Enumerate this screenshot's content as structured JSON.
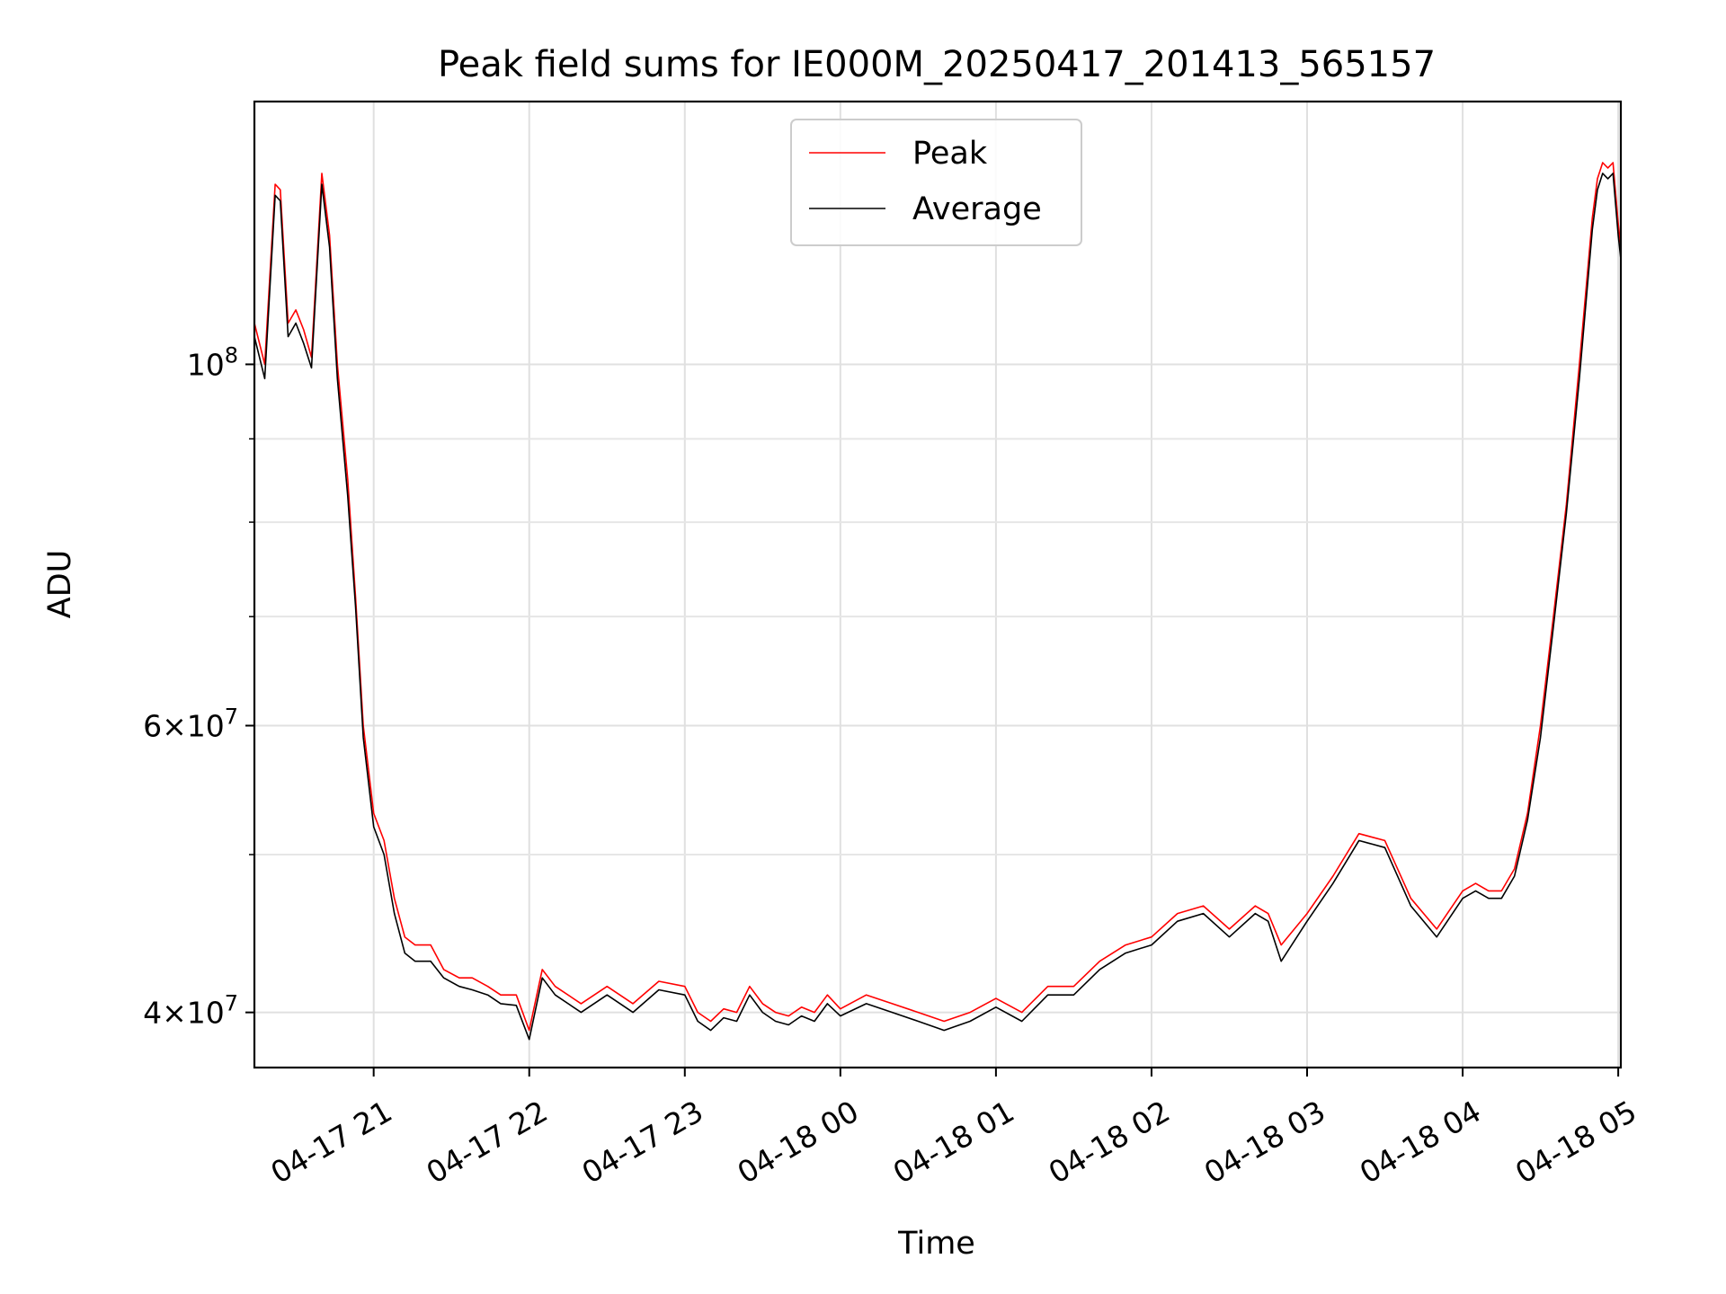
{
  "chart_data": {
    "type": "line",
    "title": "Peak field sums for IE000M_20250417_201413_565157",
    "xlabel": "Time",
    "ylabel": "ADU",
    "yscale": "log",
    "ylim": [
      37000000,
      145000000
    ],
    "xlim": [
      "04-17 20:14",
      "04-18 05:01"
    ],
    "grid": true,
    "legend_position": "upper center",
    "x_tick_labels": [
      "04-17 21",
      "04-17 22",
      "04-17 23",
      "04-18 00",
      "04-18 01",
      "04-18 02",
      "04-18 03",
      "04-18 04",
      "04-18 05"
    ],
    "y_tick_labels": [
      {
        "value": 100000000,
        "label": "10^8"
      },
      {
        "value": 60000000,
        "label": "6×10^7"
      },
      {
        "value": 40000000,
        "label": "4×10^7"
      }
    ],
    "y_minor_ticks": [
      50000000,
      70000000,
      80000000,
      90000000
    ],
    "x": [
      "04-17 20:14",
      "04-17 20:18",
      "04-17 20:22",
      "04-17 20:24",
      "04-17 20:27",
      "04-17 20:30",
      "04-17 20:33",
      "04-17 20:36",
      "04-17 20:40",
      "04-17 20:43",
      "04-17 20:46",
      "04-17 20:50",
      "04-17 20:53",
      "04-17 20:56",
      "04-17 21:00",
      "04-17 21:04",
      "04-17 21:08",
      "04-17 21:12",
      "04-17 21:16",
      "04-17 21:22",
      "04-17 21:27",
      "04-17 21:33",
      "04-17 21:38",
      "04-17 21:44",
      "04-17 21:49",
      "04-17 21:55",
      "04-17 22:00",
      "04-17 22:05",
      "04-17 22:10",
      "04-17 22:20",
      "04-17 22:30",
      "04-17 22:40",
      "04-17 22:50",
      "04-17 23:00",
      "04-17 23:05",
      "04-17 23:10",
      "04-17 23:15",
      "04-17 23:20",
      "04-17 23:25",
      "04-17 23:30",
      "04-17 23:35",
      "04-17 23:40",
      "04-17 23:45",
      "04-17 23:50",
      "04-17 23:55",
      "04-18 00:00",
      "04-18 00:10",
      "04-18 00:20",
      "04-18 00:30",
      "04-18 00:40",
      "04-18 00:50",
      "04-18 01:00",
      "04-18 01:10",
      "04-18 01:20",
      "04-18 01:30",
      "04-18 01:40",
      "04-18 01:50",
      "04-18 02:00",
      "04-18 02:10",
      "04-18 02:20",
      "04-18 02:30",
      "04-18 02:40",
      "04-18 02:45",
      "04-18 02:50",
      "04-18 03:00",
      "04-18 03:10",
      "04-18 03:20",
      "04-18 03:30",
      "04-18 03:40",
      "04-18 03:50",
      "04-18 04:00",
      "04-18 04:05",
      "04-18 04:10",
      "04-18 04:15",
      "04-18 04:20",
      "04-18 04:25",
      "04-18 04:30",
      "04-18 04:35",
      "04-18 04:40",
      "04-18 04:45",
      "04-18 04:50",
      "04-18 04:52",
      "04-18 04:54",
      "04-18 04:56",
      "04-18 04:58",
      "04-18 05:00",
      "04-18 05:01"
    ],
    "series": [
      {
        "name": "Peak",
        "color": "#ff0000",
        "values": [
          106000000,
          100000000,
          129000000,
          128000000,
          106000000,
          108000000,
          105000000,
          101000000,
          131000000,
          120000000,
          100000000,
          85000000,
          72000000,
          60000000,
          53000000,
          51000000,
          47000000,
          44500000,
          44000000,
          44000000,
          42500000,
          42000000,
          42000000,
          41500000,
          41000000,
          41000000,
          39000000,
          42500000,
          41500000,
          40500000,
          41500000,
          40500000,
          41800000,
          41500000,
          40000000,
          39500000,
          40200000,
          40000000,
          41500000,
          40500000,
          40000000,
          39800000,
          40300000,
          40000000,
          41000000,
          40200000,
          41000000,
          40500000,
          40000000,
          39500000,
          40000000,
          40800000,
          40000000,
          41500000,
          41500000,
          43000000,
          44000000,
          44500000,
          46000000,
          46500000,
          45000000,
          46500000,
          46000000,
          44000000,
          46000000,
          48500000,
          51500000,
          51000000,
          47000000,
          45000000,
          47500000,
          48000000,
          47500000,
          47500000,
          49000000,
          53000000,
          60000000,
          70000000,
          82000000,
          100000000,
          123000000,
          130000000,
          133000000,
          132000000,
          133000000,
          122000000,
          118000000
        ]
      },
      {
        "name": "Average",
        "color": "#000000",
        "values": [
          104000000,
          98000000,
          127000000,
          126000000,
          104000000,
          106000000,
          103000000,
          99500000,
          129000000,
          118000000,
          98000000,
          83000000,
          71000000,
          59000000,
          52000000,
          50000000,
          46000000,
          43500000,
          43000000,
          43000000,
          42000000,
          41500000,
          41300000,
          41000000,
          40500000,
          40400000,
          38500000,
          42000000,
          41000000,
          40000000,
          41000000,
          40000000,
          41300000,
          41000000,
          39500000,
          39000000,
          39700000,
          39500000,
          41000000,
          40000000,
          39500000,
          39300000,
          39800000,
          39500000,
          40500000,
          39800000,
          40500000,
          40000000,
          39500000,
          39000000,
          39500000,
          40300000,
          39500000,
          41000000,
          41000000,
          42500000,
          43500000,
          44000000,
          45500000,
          46000000,
          44500000,
          46000000,
          45500000,
          43000000,
          45500000,
          48000000,
          51000000,
          50500000,
          46500000,
          44500000,
          47000000,
          47500000,
          47000000,
          47000000,
          48500000,
          52500000,
          59000000,
          69000000,
          81000000,
          98000000,
          121000000,
          128000000,
          131000000,
          130000000,
          131000000,
          120000000,
          116000000
        ]
      }
    ]
  }
}
